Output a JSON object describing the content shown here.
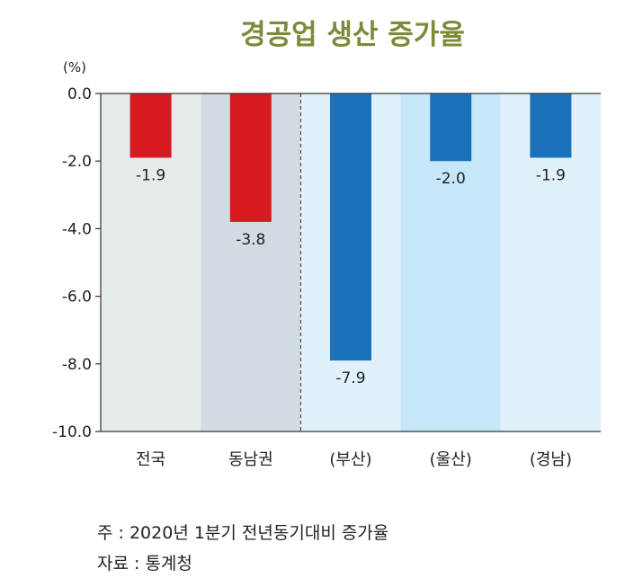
{
  "chart_data": {
    "type": "bar",
    "title": "경공업 생산 증가율",
    "ylabel": "(%)",
    "ylim": [
      -10.0,
      0.0
    ],
    "yticks": [
      "0.0",
      "-2.0",
      "-4.0",
      "-6.0",
      "-8.0",
      "-10.0"
    ],
    "categories": [
      "전국",
      "동남권",
      "(부산)",
      "(울산)",
      "(경남)"
    ],
    "values": [
      -1.9,
      -3.8,
      -7.9,
      -2.0,
      -1.9
    ],
    "value_labels": [
      "-1.9",
      "-3.8",
      "-7.9",
      "-2.0",
      "-1.9"
    ],
    "bar_colors": [
      "#d71920",
      "#d71920",
      "#1a72bb",
      "#1a72bb",
      "#1a72bb"
    ],
    "panel_colors": [
      "#e6ebee",
      "#d3dbe2",
      "#e0f1fb",
      "#c6e6f9",
      "#e0f1fb"
    ],
    "grid": false,
    "divider_after_category": "동남권"
  },
  "notes": {
    "note": "주 : 2020년 1분기 전년동기대비 증가율",
    "source": "자료 : 통계청"
  }
}
